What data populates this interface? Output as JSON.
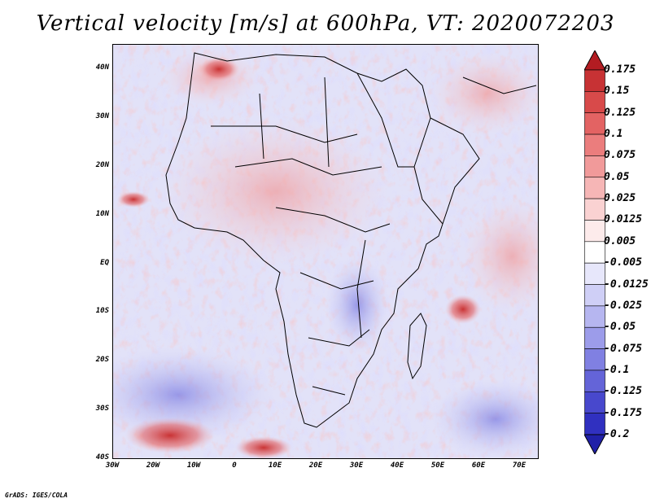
{
  "title": "Vertical velocity [m/s] at 600hPa, VT: 2020072203",
  "footer": "GrADS: IGES/COLA",
  "map": {
    "lat_labels": [
      "40N",
      "30N",
      "20N",
      "10N",
      "EQ",
      "10S",
      "20S",
      "30S",
      "40S"
    ],
    "lon_labels": [
      "30W",
      "20W",
      "10W",
      "0",
      "10E",
      "20E",
      "30E",
      "40E",
      "50E",
      "60E",
      "70E"
    ]
  },
  "colorbar": {
    "labels": [
      "0.175",
      "0.15",
      "0.125",
      "0.1",
      "0.075",
      "0.05",
      "0.025",
      "0.0125",
      "0.005",
      "-0.005",
      "-0.0125",
      "-0.025",
      "-0.05",
      "-0.075",
      "-0.1",
      "-0.125",
      "-0.175",
      "-0.2"
    ],
    "colors": [
      "#b31c22",
      "#c73234",
      "#d84a4a",
      "#e36363",
      "#eb7d7d",
      "#f19a9a",
      "#f6b6b6",
      "#fad2d2",
      "#fdebeb",
      "#ffffff",
      "#e7e7fb",
      "#cfcff6",
      "#b6b6f0",
      "#9c9cea",
      "#8080e2",
      "#6464d8",
      "#4848cd",
      "#3030c0",
      "#2020a8"
    ]
  }
}
